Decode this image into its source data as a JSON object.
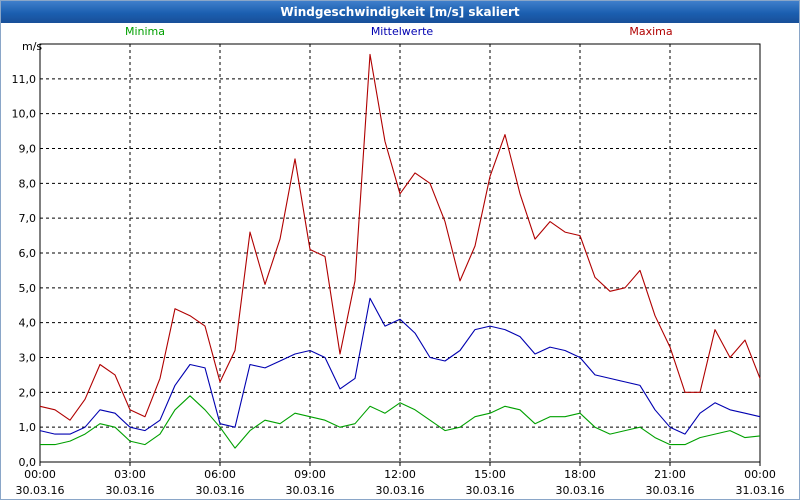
{
  "window": {
    "title": "Windgeschwindigkeit [m/s] skaliert"
  },
  "colors": {
    "minima": "#00a000",
    "mittelwerte": "#0000b0",
    "maxima": "#b00000",
    "grid": "#000000",
    "title_bar": "#1b5fb0"
  },
  "chart_data": {
    "type": "line",
    "title": "Windgeschwindigkeit [m/s] skaliert",
    "ylabel": "m/s",
    "ylim": [
      0,
      12
    ],
    "yticks": [
      "0,0",
      "1,0",
      "2,0",
      "3,0",
      "4,0",
      "5,0",
      "6,0",
      "7,0",
      "8,0",
      "9,0",
      "10,0",
      "11,0"
    ],
    "xlim": [
      "30.03.16 00:00",
      "31.03.16 00:00"
    ],
    "xticks": [
      {
        "time": "00:00",
        "date": "30.03.16"
      },
      {
        "time": "03:00",
        "date": "30.03.16"
      },
      {
        "time": "06:00",
        "date": "30.03.16"
      },
      {
        "time": "09:00",
        "date": "30.03.16"
      },
      {
        "time": "12:00",
        "date": "30.03.16"
      },
      {
        "time": "15:00",
        "date": "30.03.16"
      },
      {
        "time": "18:00",
        "date": "30.03.16"
      },
      {
        "time": "21:00",
        "date": "30.03.16"
      },
      {
        "time": "00:00",
        "date": "31.03.16"
      }
    ],
    "grid": true,
    "legend_position": "top",
    "x_hours": [
      0,
      0.5,
      1,
      1.5,
      2,
      2.5,
      3,
      3.5,
      4,
      4.5,
      5,
      5.5,
      6,
      6.5,
      7,
      7.5,
      8,
      8.5,
      9,
      9.5,
      10,
      10.5,
      11,
      11.5,
      12,
      12.5,
      13,
      13.5,
      14,
      14.5,
      15,
      15.5,
      16,
      16.5,
      17,
      17.5,
      18,
      18.5,
      19,
      19.5,
      20,
      20.5,
      21,
      21.5,
      22,
      22.5,
      23,
      23.5,
      24
    ],
    "series": [
      {
        "name": "Minima",
        "color": "#00a000",
        "values": [
          0.5,
          0.5,
          0.6,
          0.8,
          1.1,
          1.0,
          0.6,
          0.5,
          0.8,
          1.5,
          1.9,
          1.5,
          1.0,
          0.4,
          0.9,
          1.2,
          1.1,
          1.4,
          1.3,
          1.2,
          1.0,
          1.1,
          1.6,
          1.4,
          1.7,
          1.5,
          1.2,
          0.9,
          1.0,
          1.3,
          1.4,
          1.6,
          1.5,
          1.1,
          1.3,
          1.3,
          1.4,
          1.0,
          0.8,
          0.9,
          1.0,
          0.7,
          0.5,
          0.5,
          0.7,
          0.8,
          0.9,
          0.7,
          0.75
        ]
      },
      {
        "name": "Mittelwerte",
        "color": "#0000b0",
        "values": [
          0.9,
          0.8,
          0.8,
          1.0,
          1.5,
          1.4,
          1.0,
          0.9,
          1.2,
          2.2,
          2.8,
          2.7,
          1.1,
          1.0,
          2.8,
          2.7,
          2.9,
          3.1,
          3.2,
          3.0,
          2.1,
          2.4,
          4.7,
          3.9,
          4.1,
          3.7,
          3.0,
          2.9,
          3.2,
          3.8,
          3.9,
          3.8,
          3.6,
          3.1,
          3.3,
          3.2,
          3.0,
          2.5,
          2.4,
          2.3,
          2.2,
          1.5,
          1.0,
          0.8,
          1.4,
          1.7,
          1.5,
          1.4,
          1.3
        ]
      },
      {
        "name": "Maxima",
        "color": "#b00000",
        "values": [
          1.6,
          1.5,
          1.2,
          1.8,
          2.8,
          2.5,
          1.5,
          1.3,
          2.4,
          4.4,
          4.2,
          3.9,
          2.3,
          3.2,
          6.6,
          5.1,
          6.4,
          8.7,
          6.1,
          5.9,
          3.1,
          5.2,
          11.7,
          9.2,
          7.7,
          8.3,
          8.0,
          6.9,
          5.2,
          6.2,
          8.2,
          9.4,
          7.7,
          6.4,
          6.9,
          6.6,
          6.5,
          5.3,
          4.9,
          5.0,
          5.5,
          4.2,
          3.3,
          2.0,
          2.0,
          3.8,
          3.0,
          3.5,
          2.4
        ]
      }
    ]
  }
}
